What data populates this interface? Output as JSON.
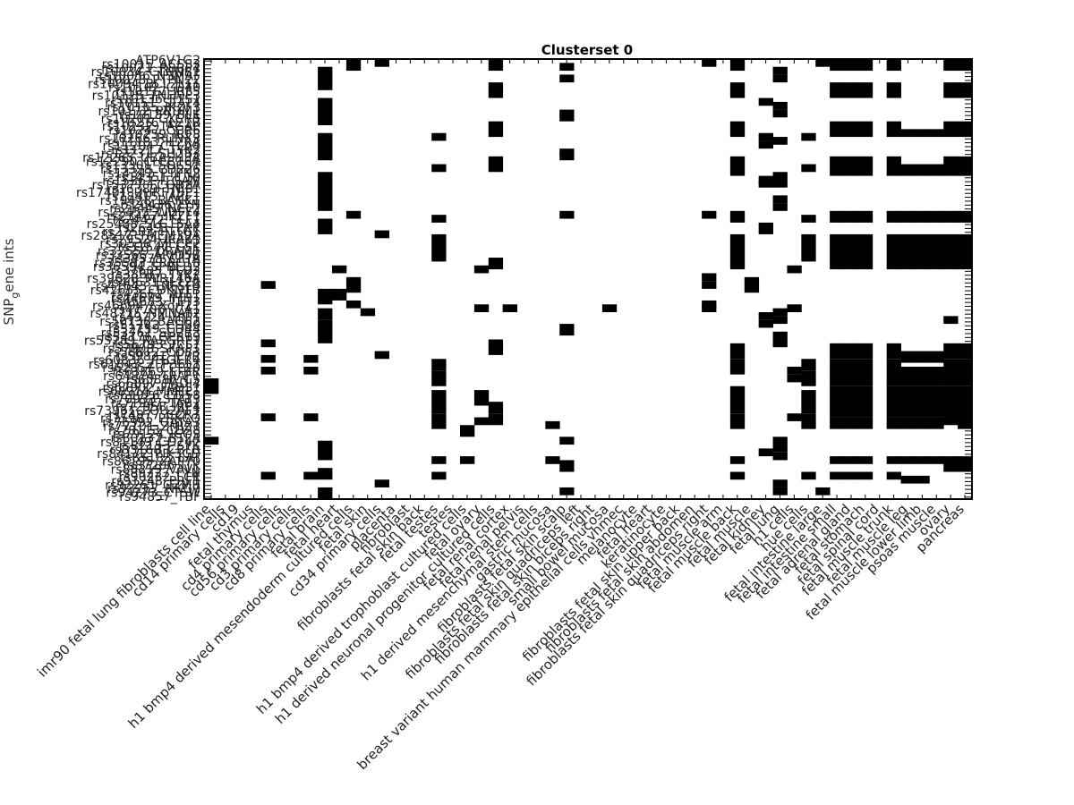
{
  "chart_data": {
    "type": "heatmap",
    "title": "Clusterset 0",
    "ylabel": "SNP_gene ints",
    "ylabel_main": "SNP",
    "ylabel_sub": "g",
    "ylabel_rest": "ene ints",
    "xlabel": "",
    "columns": [
      "imr90 fetal lung fibroblasts cell line",
      "cd14 primary cells",
      "cd19",
      "fetal thymus",
      "cd4 primary cells",
      "cd56 primary cells",
      "cd3 primary cells",
      "cd8 primary cells",
      "fetal brain",
      "fetal heart",
      "h1 bmp4 derived mesendoderm cultured cells",
      "fetal skin",
      "cd34 primary cells",
      "placenta",
      "fibroblast",
      "fibroblasts fetal skin back",
      "fetal testes",
      "testes",
      "h1 bmp4 derived trophoblast cultured cells",
      "fetal ovary",
      "h1 derived neuronal progenitor cultured cells",
      "fetal renal cortex",
      "fetal renal pelvis",
      "h1 derived mesenchymal stem cells",
      "gastric mucosa",
      "fibroblasts fetal skin scalp",
      "fibroblasts fetal skin quadriceps left",
      "fibroblasts fetal skin biceps right",
      "small bowel mucosa",
      "breast variant human mammary epithelial cells vhmec",
      "melanocyte",
      "fetal heart",
      "keratinocyte",
      "fibroblasts fetal skin upper back",
      "fibroblasts fetal skin abdomen",
      "fibroblasts fetal skin quadriceps right",
      "fetal muscle arm",
      "fetal muscle back",
      "fetal muscle",
      "fetal kidney",
      "fetal lung",
      "h1 cells",
      "hue cells",
      "fetal intestine large",
      "fetal intestine small",
      "fetal adrenal gland",
      "fetal stomach",
      "fetal spinal cord",
      "fetal muscle trunk",
      "fetal muscle leg",
      "fetal muscle lower limb",
      "psoas muscle",
      "ovary",
      "pancreas"
    ],
    "row_labels": [
      "ATP6V1G2",
      "rs10015_ACSS3",
      "rs10021_RBBP4",
      "rs10034_CTNNB1",
      "rs10056_NSMAF",
      "rs10078_PTPN22",
      "rs10094_BCL2L11",
      "rs10102_CD40",
      "rs10117_IRF5",
      "rs10125_TNFAIP3",
      "rs10136_ETS1",
      "rs10151_STAT4",
      "rs10165_IKZF3",
      "rs10172_PRDM1",
      "rs10189_BLK",
      "rs10201_CXCR5",
      "rs10216_IL21R",
      "rs10232_TAGAP",
      "rs10247_CCR6",
      "rs10259_IRF8",
      "rs10266_RUNX3",
      "rs11183_IL2RA",
      "rs11204_CTLA4",
      "rs11217_TYK2",
      "rs12231_SH2B3",
      "rs12265_UBASH3A",
      "rs12290_CLEC16A",
      "rs13301_SOCS1",
      "rs13328_CD226",
      "rs14342_PTPN2",
      "rs14351_IL10",
      "rs15362_ITGAM",
      "rs15377_FCGR2A",
      "rs16389_TNIP1",
      "rs17401_UHRF1BP1",
      "rs18415_JAZF1",
      "rs19428_BANK1",
      "rs20436_LYN",
      "rs21449_NCF2",
      "rs22453_WDFY4",
      "rs23467_IKZF1",
      "rs24472_ELF1",
      "rs25488_SLC15A4",
      "rs26491_PXK",
      "rs27503_PTTG1",
      "rs28517_TMEM39A",
      "rs29524_IRAK1",
      "rs30538_MECP2",
      "rs31547_CSK",
      "rs32559_DRAM1",
      "rs33566_ARID5B",
      "rs34578_CIITA",
      "rs35583_LRRC18",
      "rs36594_SPRED2",
      "rs37605_PLD2",
      "rs38617_TYK2",
      "rs39628_MIR146A",
      "rs40631_IL12A",
      "rs41643_TNFSF4",
      "rs42655_CDKN1B",
      "rs43662_AFF1",
      "rs44679_IFIH1",
      "rs45683_TET3",
      "rs46694_CXorf21",
      "rs47706_ICA1",
      "rs48715_NMNAT2",
      "rs49724_HIP1",
      "rs50738_BACH2",
      "rs51742_CD80",
      "rs52759_CD44",
      "rs53761_SH2B3",
      "rs54776_GPR19",
      "rs55789_RASGRP1",
      "rs56793_TCF7",
      "rs57808_SKAP1",
      "rs58812_CD83",
      "rs59821_IL7R",
      "rs60836_PTGER4",
      "rs61843_ZFP36L1",
      "rs62857_CCL20",
      "rs63869_LTBR",
      "rs64874_TRAF1",
      "rs65886_C5",
      "rs66897_PADI4",
      "rs67902_FADS1",
      "rs68914_MMEL1",
      "rs69926_CD58",
      "rs70933_STAT3",
      "rs71947_TAB1",
      "rs72958_IRF4",
      "rs73961_POU2AF1",
      "rs74977_CCR7",
      "rs75981_PRKCQ",
      "rs76992_GATA3",
      "rs77101_ZMIZ1",
      "rs78113_CD28",
      "rs79124_ICOS",
      "rs80137_BTLA",
      "rs81149_CD247",
      "rs82153_SYK",
      "rs83168_CBLB",
      "rs84172_PIK3CD",
      "rs85183_LAT",
      "rs86195_ZAP70",
      "rs87206_ITK",
      "rs88219_VAV1",
      "rs89227_FYN",
      "rs90232_LCK",
      "rs91248_PRF1",
      "rs92251_GZMB",
      "rs93267_NKG7",
      "rs94273_CTSW",
      "rs94857_TBF"
    ],
    "colors": {
      "on": "#000000",
      "off": "#ffffff",
      "frame": "#000000"
    },
    "grid": false,
    "legend": "none",
    "note_cells": "binary matrix: rows x columns, 1 = black, 0 = white",
    "cells": []
  }
}
